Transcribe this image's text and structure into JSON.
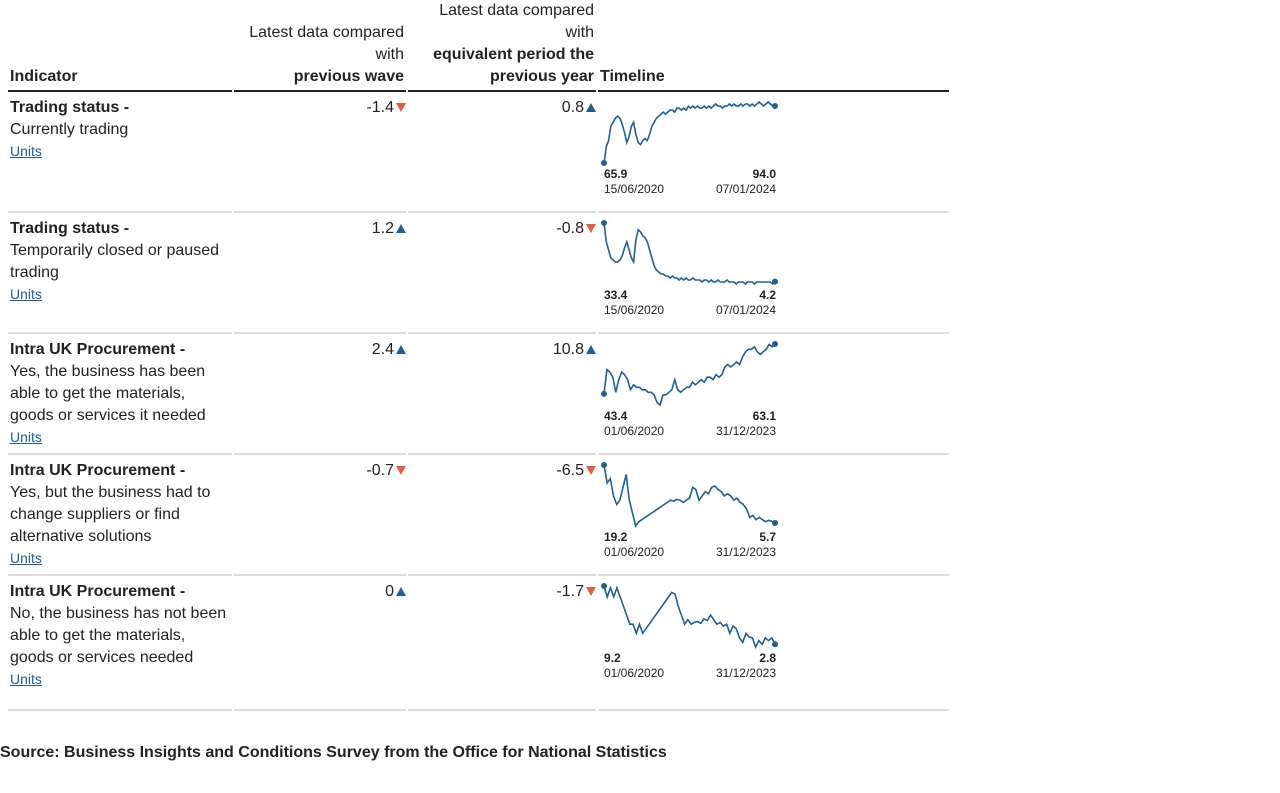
{
  "headers": {
    "indicator": "Indicator",
    "wave_prefix": "Latest data compared with",
    "wave_bold": "previous wave",
    "year_prefix": "Latest data compared with",
    "year_bold": "equivalent period the previous year",
    "timeline": "Timeline"
  },
  "rows": [
    {
      "title": "Trading status -",
      "description": "Currently trading",
      "units": "Units",
      "wave_change": "-1.4",
      "wave_dir": "down",
      "year_change": "0.8",
      "year_dir": "up"
    },
    {
      "title": "Trading status -",
      "description": "Temporarily closed or paused trading",
      "units": "Units",
      "wave_change": "1.2",
      "wave_dir": "up",
      "year_change": "-0.8",
      "year_dir": "down"
    },
    {
      "title": "Intra UK Procurement -",
      "description": "Yes, the business has been able to get the materials, goods or services it needed",
      "units": "Units",
      "wave_change": "2.4",
      "wave_dir": "up",
      "year_change": "10.8",
      "year_dir": "up"
    },
    {
      "title": "Intra UK Procurement -",
      "description": "Yes, but the business had to change suppliers or find alternative solutions",
      "units": "Units",
      "wave_change": "-0.7",
      "wave_dir": "down",
      "year_change": "-6.5",
      "year_dir": "down"
    },
    {
      "title": "Intra UK Procurement -",
      "description": "No, the business has not been able to get the materials, goods or services needed",
      "units": "Units",
      "wave_change": "0",
      "wave_dir": "up",
      "year_change": "-1.7",
      "year_dir": "down"
    }
  ],
  "source": "Source: Business Insights and Conditions Survey from the Office for National Statistics",
  "colors": {
    "line": "#206095",
    "up": "#206095",
    "down": "#e15e43"
  },
  "chart_data": [
    {
      "type": "line",
      "title": "Trading status - Currently trading",
      "start_label": "65.9",
      "end_label": "94.0",
      "start_date": "15/06/2020",
      "end_date": "07/01/2024",
      "values": [
        65.9,
        74,
        77,
        84,
        86,
        88,
        89,
        88,
        85,
        81,
        76,
        79,
        84,
        86,
        80,
        76,
        75,
        77,
        78,
        77,
        80,
        84,
        86,
        88,
        89,
        90,
        91,
        90,
        91,
        92,
        92,
        91,
        93,
        93,
        92,
        93,
        92,
        94,
        93,
        94,
        93,
        94,
        93,
        93,
        94,
        93,
        94,
        93,
        94,
        95,
        94,
        94,
        93,
        94,
        94,
        95,
        94,
        95,
        94,
        94,
        95,
        94,
        95,
        95,
        94,
        95,
        94,
        95,
        96,
        95,
        94,
        95,
        96,
        95,
        94,
        94.0
      ]
    },
    {
      "type": "line",
      "title": "Trading status - Temporarily closed or paused trading",
      "start_label": "33.4",
      "end_label": "4.2",
      "start_date": "15/06/2020",
      "end_date": "07/01/2024",
      "values": [
        33.4,
        24,
        20,
        16,
        15,
        14,
        14,
        15,
        17,
        21,
        24,
        20,
        16,
        14,
        25,
        30,
        29,
        27,
        26,
        24,
        20,
        16,
        12,
        10,
        9,
        8,
        8,
        7,
        7,
        6,
        7,
        6,
        6,
        5,
        6,
        5,
        6,
        5,
        5,
        6,
        5,
        5,
        5,
        4,
        5,
        5,
        4,
        5,
        4,
        4,
        5,
        4,
        4,
        4,
        5,
        4,
        4,
        4,
        3,
        4,
        4,
        4,
        3,
        4,
        4,
        4,
        3,
        4,
        4,
        4,
        4,
        4,
        4,
        4,
        3,
        4.2
      ]
    },
    {
      "type": "line",
      "title": "Intra UK Procurement - Yes, the business has been able to get the materials, goods or services it needed",
      "start_label": "43.4",
      "end_label": "63.1",
      "start_date": "01/06/2020",
      "end_date": "31/12/2023",
      "values": [
        43.4,
        53,
        52,
        50,
        44,
        49,
        52,
        51,
        49,
        45,
        47,
        46,
        46,
        45,
        45,
        44,
        44,
        43,
        40,
        39,
        43,
        43,
        44,
        45,
        49,
        45,
        44,
        45,
        46,
        46,
        48,
        47,
        48,
        49,
        48,
        50,
        50,
        49,
        51,
        50,
        51,
        54,
        55,
        54,
        55,
        56,
        55,
        58,
        60,
        61,
        61,
        62,
        60,
        59,
        60,
        61,
        63,
        62,
        63.1
      ]
    },
    {
      "type": "line",
      "title": "Intra UK Procurement - Yes, but the business had to change suppliers or find alternative solutions",
      "start_label": "19.2",
      "end_label": "5.7",
      "start_date": "01/06/2020",
      "end_date": "31/12/2023",
      "values": [
        19.2,
        15,
        16,
        12,
        10,
        11,
        14,
        17,
        11,
        8,
        5,
        6,
        6.5,
        7,
        7.5,
        8,
        8.5,
        9,
        9.5,
        10,
        10.5,
        11,
        10.8,
        11.2,
        11,
        10.5,
        11,
        11.5,
        14,
        13.5,
        11,
        12,
        13,
        12.5,
        14,
        14.3,
        13.5,
        13,
        12,
        12.5,
        12,
        11,
        11.5,
        10.5,
        10,
        9,
        7,
        7.5,
        6.5,
        7,
        6.5,
        6,
        6.3,
        6.1,
        5.7
      ]
    },
    {
      "type": "line",
      "title": "Intra UK Procurement - No, the business has not been able to get the materials, goods or services needed",
      "start_label": "9.2",
      "end_label": "2.8",
      "start_date": "01/06/2020",
      "end_date": "31/12/2023",
      "values": [
        9.2,
        8,
        9,
        8,
        9,
        8,
        7,
        6,
        5,
        5,
        4,
        5,
        4,
        4.5,
        5,
        5.5,
        6,
        6.5,
        7,
        7.5,
        8,
        8.5,
        8.3,
        7,
        6,
        5,
        5.5,
        5,
        5.2,
        5.3,
        5.1,
        5.6,
        5.4,
        6,
        5.5,
        5,
        5.2,
        4.8,
        5,
        4,
        4.8,
        4.5,
        3.5,
        3,
        4,
        3.6,
        3.5,
        2.5,
        3.2,
        2.8,
        3.5,
        3.2,
        3.5,
        2.8
      ]
    }
  ]
}
